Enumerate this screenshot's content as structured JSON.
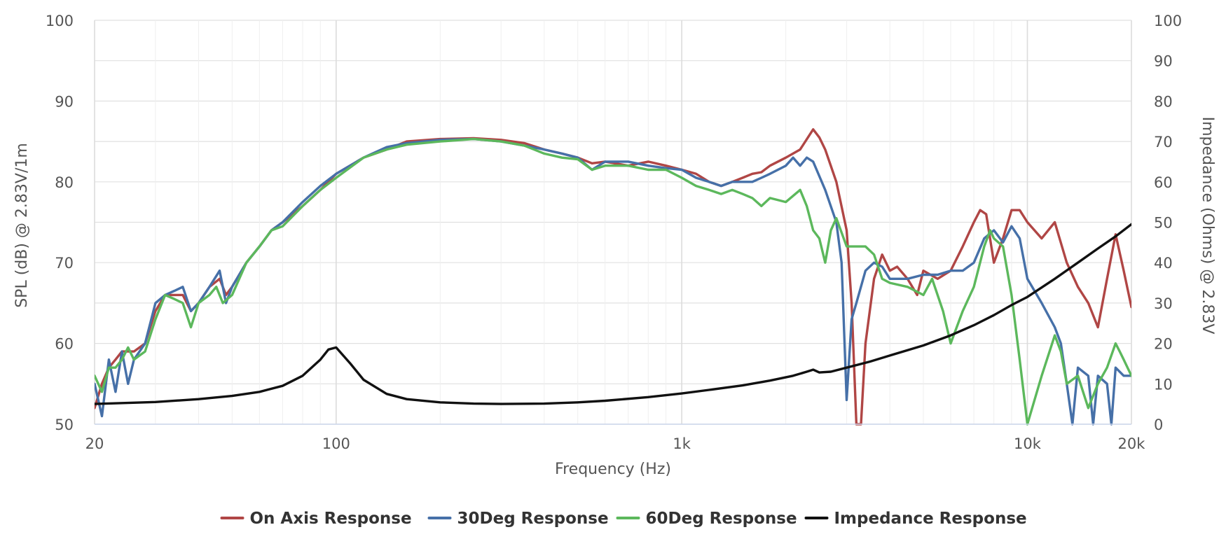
{
  "chart_data": {
    "type": "line",
    "title": "",
    "xlabel": "Frequency (Hz)",
    "ylabel_left": "SPL (dB) @ 2.83V/1m",
    "ylabel_right": "Impedance (Ohms) @ 2.83V",
    "x_scale": "log",
    "xlim": [
      20,
      20000
    ],
    "ylim_left": [
      50,
      100
    ],
    "ylim_right": [
      0,
      100
    ],
    "x_ticks": [
      {
        "value": 20,
        "label": "20"
      },
      {
        "value": 100,
        "label": "100"
      },
      {
        "value": 1000,
        "label": "1k"
      },
      {
        "value": 10000,
        "label": "10k"
      },
      {
        "value": 20000,
        "label": "20k"
      }
    ],
    "y_ticks_left": [
      "50",
      "60",
      "70",
      "80",
      "90",
      "100"
    ],
    "y_ticks_right": [
      "0",
      "10",
      "20",
      "30",
      "40",
      "50",
      "60",
      "70",
      "80",
      "90",
      "100"
    ],
    "grid": true,
    "legend_position": "bottom",
    "series": [
      {
        "name": "On Axis Response",
        "axis": "left",
        "color": "#b04645",
        "points": [
          [
            20,
            52
          ],
          [
            21,
            55
          ],
          [
            22,
            57
          ],
          [
            23,
            58
          ],
          [
            24,
            59
          ],
          [
            26,
            59
          ],
          [
            28,
            60
          ],
          [
            30,
            64
          ],
          [
            32,
            66
          ],
          [
            34,
            66
          ],
          [
            36,
            66
          ],
          [
            38,
            64
          ],
          [
            40,
            65
          ],
          [
            43,
            67
          ],
          [
            46,
            68
          ],
          [
            48,
            66
          ],
          [
            50,
            67
          ],
          [
            55,
            70
          ],
          [
            60,
            72
          ],
          [
            65,
            74
          ],
          [
            70,
            75
          ],
          [
            80,
            77
          ],
          [
            90,
            79
          ],
          [
            100,
            81
          ],
          [
            120,
            83
          ],
          [
            140,
            84
          ],
          [
            160,
            85
          ],
          [
            200,
            85.3
          ],
          [
            250,
            85.4
          ],
          [
            300,
            85.2
          ],
          [
            350,
            84.8
          ],
          [
            400,
            84
          ],
          [
            450,
            83.5
          ],
          [
            500,
            83
          ],
          [
            550,
            82.3
          ],
          [
            600,
            82.5
          ],
          [
            700,
            82
          ],
          [
            800,
            82.5
          ],
          [
            900,
            82
          ],
          [
            1000,
            81.5
          ],
          [
            1100,
            81
          ],
          [
            1200,
            80
          ],
          [
            1300,
            79.5
          ],
          [
            1400,
            80
          ],
          [
            1500,
            80.5
          ],
          [
            1600,
            81
          ],
          [
            1700,
            81.2
          ],
          [
            1800,
            82
          ],
          [
            2000,
            83
          ],
          [
            2200,
            84
          ],
          [
            2400,
            86.5
          ],
          [
            2500,
            85.5
          ],
          [
            2600,
            84
          ],
          [
            2800,
            80
          ],
          [
            3000,
            74
          ],
          [
            3100,
            65
          ],
          [
            3200,
            50
          ],
          [
            3300,
            50
          ],
          [
            3400,
            60
          ],
          [
            3600,
            68
          ],
          [
            3800,
            71
          ],
          [
            4000,
            69
          ],
          [
            4200,
            69.5
          ],
          [
            4500,
            68
          ],
          [
            4800,
            66
          ],
          [
            5000,
            69
          ],
          [
            5500,
            68
          ],
          [
            6000,
            69
          ],
          [
            6500,
            72
          ],
          [
            7000,
            75
          ],
          [
            7300,
            76.5
          ],
          [
            7600,
            76
          ],
          [
            8000,
            70
          ],
          [
            8500,
            73
          ],
          [
            9000,
            76.5
          ],
          [
            9500,
            76.5
          ],
          [
            10000,
            75
          ],
          [
            11000,
            73
          ],
          [
            12000,
            75
          ],
          [
            13000,
            70
          ],
          [
            14000,
            67
          ],
          [
            15000,
            65
          ],
          [
            16000,
            62
          ],
          [
            17000,
            68
          ],
          [
            18000,
            73.5
          ],
          [
            19000,
            69
          ],
          [
            20000,
            64.5
          ]
        ]
      },
      {
        "name": "30Deg Response",
        "axis": "left",
        "color": "#4670a8",
        "points": [
          [
            20,
            55
          ],
          [
            21,
            51
          ],
          [
            22,
            58
          ],
          [
            23,
            54
          ],
          [
            24,
            59
          ],
          [
            25,
            55
          ],
          [
            26,
            58
          ],
          [
            28,
            60
          ],
          [
            30,
            65
          ],
          [
            32,
            66
          ],
          [
            34,
            66.5
          ],
          [
            36,
            67
          ],
          [
            38,
            64
          ],
          [
            40,
            65
          ],
          [
            43,
            67
          ],
          [
            46,
            69
          ],
          [
            48,
            65
          ],
          [
            50,
            67
          ],
          [
            55,
            70
          ],
          [
            60,
            72
          ],
          [
            65,
            74
          ],
          [
            70,
            75
          ],
          [
            80,
            77.5
          ],
          [
            90,
            79.5
          ],
          [
            100,
            81
          ],
          [
            120,
            83
          ],
          [
            140,
            84.3
          ],
          [
            160,
            84.8
          ],
          [
            200,
            85.2
          ],
          [
            250,
            85.3
          ],
          [
            300,
            85
          ],
          [
            350,
            84.5
          ],
          [
            400,
            84
          ],
          [
            450,
            83.5
          ],
          [
            500,
            83
          ],
          [
            550,
            81.5
          ],
          [
            600,
            82.5
          ],
          [
            700,
            82.5
          ],
          [
            800,
            82
          ],
          [
            900,
            81.7
          ],
          [
            1000,
            81.5
          ],
          [
            1100,
            80.5
          ],
          [
            1200,
            80
          ],
          [
            1300,
            79.5
          ],
          [
            1400,
            80
          ],
          [
            1500,
            80
          ],
          [
            1600,
            80
          ],
          [
            1700,
            80.5
          ],
          [
            1800,
            81
          ],
          [
            2000,
            82
          ],
          [
            2100,
            83
          ],
          [
            2200,
            82
          ],
          [
            2300,
            83
          ],
          [
            2400,
            82.5
          ],
          [
            2600,
            79
          ],
          [
            2800,
            75
          ],
          [
            2900,
            70
          ],
          [
            3000,
            53
          ],
          [
            3100,
            63
          ],
          [
            3200,
            65
          ],
          [
            3400,
            69
          ],
          [
            3600,
            70
          ],
          [
            3800,
            69.5
          ],
          [
            4000,
            68
          ],
          [
            4500,
            68
          ],
          [
            5000,
            68.5
          ],
          [
            5500,
            68.5
          ],
          [
            6000,
            69
          ],
          [
            6500,
            69
          ],
          [
            7000,
            70
          ],
          [
            7500,
            73
          ],
          [
            8000,
            74
          ],
          [
            8500,
            72.5
          ],
          [
            9000,
            74.5
          ],
          [
            9500,
            73
          ],
          [
            10000,
            68
          ],
          [
            11000,
            65
          ],
          [
            12000,
            62
          ],
          [
            12500,
            60
          ],
          [
            13000,
            55
          ],
          [
            13500,
            50
          ],
          [
            14000,
            57
          ],
          [
            15000,
            56
          ],
          [
            15500,
            50
          ],
          [
            16000,
            56
          ],
          [
            17000,
            55
          ],
          [
            17500,
            50
          ],
          [
            18000,
            57
          ],
          [
            19000,
            56
          ],
          [
            20000,
            56
          ]
        ]
      },
      {
        "name": "60Deg Response",
        "axis": "left",
        "color": "#5cb85c",
        "points": [
          [
            20,
            56
          ],
          [
            21,
            54
          ],
          [
            22,
            57
          ],
          [
            23,
            57
          ],
          [
            24,
            58
          ],
          [
            25,
            59.5
          ],
          [
            26,
            58
          ],
          [
            28,
            59
          ],
          [
            30,
            63
          ],
          [
            32,
            66
          ],
          [
            34,
            65.5
          ],
          [
            36,
            65
          ],
          [
            38,
            62
          ],
          [
            40,
            65
          ],
          [
            43,
            66
          ],
          [
            45,
            67
          ],
          [
            47,
            65
          ],
          [
            50,
            66
          ],
          [
            55,
            70
          ],
          [
            60,
            72
          ],
          [
            65,
            74
          ],
          [
            70,
            74.5
          ],
          [
            80,
            77
          ],
          [
            90,
            79
          ],
          [
            100,
            80.5
          ],
          [
            120,
            83
          ],
          [
            140,
            84
          ],
          [
            160,
            84.6
          ],
          [
            200,
            85
          ],
          [
            250,
            85.3
          ],
          [
            300,
            85
          ],
          [
            350,
            84.5
          ],
          [
            400,
            83.5
          ],
          [
            450,
            83
          ],
          [
            500,
            82.8
          ],
          [
            550,
            81.5
          ],
          [
            600,
            82
          ],
          [
            700,
            82
          ],
          [
            800,
            81.5
          ],
          [
            900,
            81.5
          ],
          [
            1000,
            80.5
          ],
          [
            1100,
            79.5
          ],
          [
            1200,
            79
          ],
          [
            1300,
            78.5
          ],
          [
            1400,
            79
          ],
          [
            1500,
            78.5
          ],
          [
            1600,
            78
          ],
          [
            1700,
            77
          ],
          [
            1800,
            78
          ],
          [
            2000,
            77.5
          ],
          [
            2200,
            79
          ],
          [
            2300,
            77
          ],
          [
            2400,
            74
          ],
          [
            2500,
            73
          ],
          [
            2600,
            70
          ],
          [
            2700,
            74
          ],
          [
            2800,
            75.5
          ],
          [
            3000,
            72
          ],
          [
            3200,
            72
          ],
          [
            3400,
            72
          ],
          [
            3600,
            71
          ],
          [
            3800,
            68
          ],
          [
            4000,
            67.5
          ],
          [
            4500,
            67
          ],
          [
            5000,
            66
          ],
          [
            5300,
            68
          ],
          [
            5700,
            64
          ],
          [
            6000,
            60
          ],
          [
            6500,
            64
          ],
          [
            7000,
            67
          ],
          [
            7500,
            72
          ],
          [
            7800,
            74
          ],
          [
            8000,
            73
          ],
          [
            8500,
            72
          ],
          [
            9000,
            66
          ],
          [
            9500,
            58
          ],
          [
            10000,
            50
          ],
          [
            11000,
            56
          ],
          [
            12000,
            61
          ],
          [
            12500,
            59
          ],
          [
            13000,
            55
          ],
          [
            14000,
            56
          ],
          [
            15000,
            52
          ],
          [
            16000,
            55
          ],
          [
            17000,
            57
          ],
          [
            18000,
            60
          ],
          [
            18500,
            59
          ],
          [
            19000,
            58
          ],
          [
            20000,
            56
          ]
        ]
      },
      {
        "name": "Impedance Response",
        "axis": "right",
        "color": "#111111",
        "points": [
          [
            20,
            5
          ],
          [
            30,
            5.5
          ],
          [
            40,
            6.2
          ],
          [
            50,
            7
          ],
          [
            60,
            8
          ],
          [
            70,
            9.5
          ],
          [
            80,
            12
          ],
          [
            90,
            16
          ],
          [
            95,
            18.5
          ],
          [
            100,
            19
          ],
          [
            110,
            15
          ],
          [
            120,
            11
          ],
          [
            140,
            7.5
          ],
          [
            160,
            6.2
          ],
          [
            200,
            5.4
          ],
          [
            250,
            5.1
          ],
          [
            300,
            5
          ],
          [
            400,
            5.1
          ],
          [
            500,
            5.4
          ],
          [
            600,
            5.8
          ],
          [
            800,
            6.7
          ],
          [
            1000,
            7.6
          ],
          [
            1200,
            8.5
          ],
          [
            1500,
            9.6
          ],
          [
            1800,
            10.8
          ],
          [
            2100,
            12
          ],
          [
            2300,
            13
          ],
          [
            2400,
            13.5
          ],
          [
            2500,
            12.8
          ],
          [
            2700,
            13
          ],
          [
            3000,
            14
          ],
          [
            3500,
            15.5
          ],
          [
            4000,
            17
          ],
          [
            5000,
            19.5
          ],
          [
            6000,
            22
          ],
          [
            7000,
            24.5
          ],
          [
            8000,
            27
          ],
          [
            9000,
            29.5
          ],
          [
            10000,
            31.5
          ],
          [
            12000,
            36
          ],
          [
            14000,
            40
          ],
          [
            16000,
            43.5
          ],
          [
            18000,
            46.5
          ],
          [
            20000,
            49.5
          ]
        ]
      }
    ]
  }
}
